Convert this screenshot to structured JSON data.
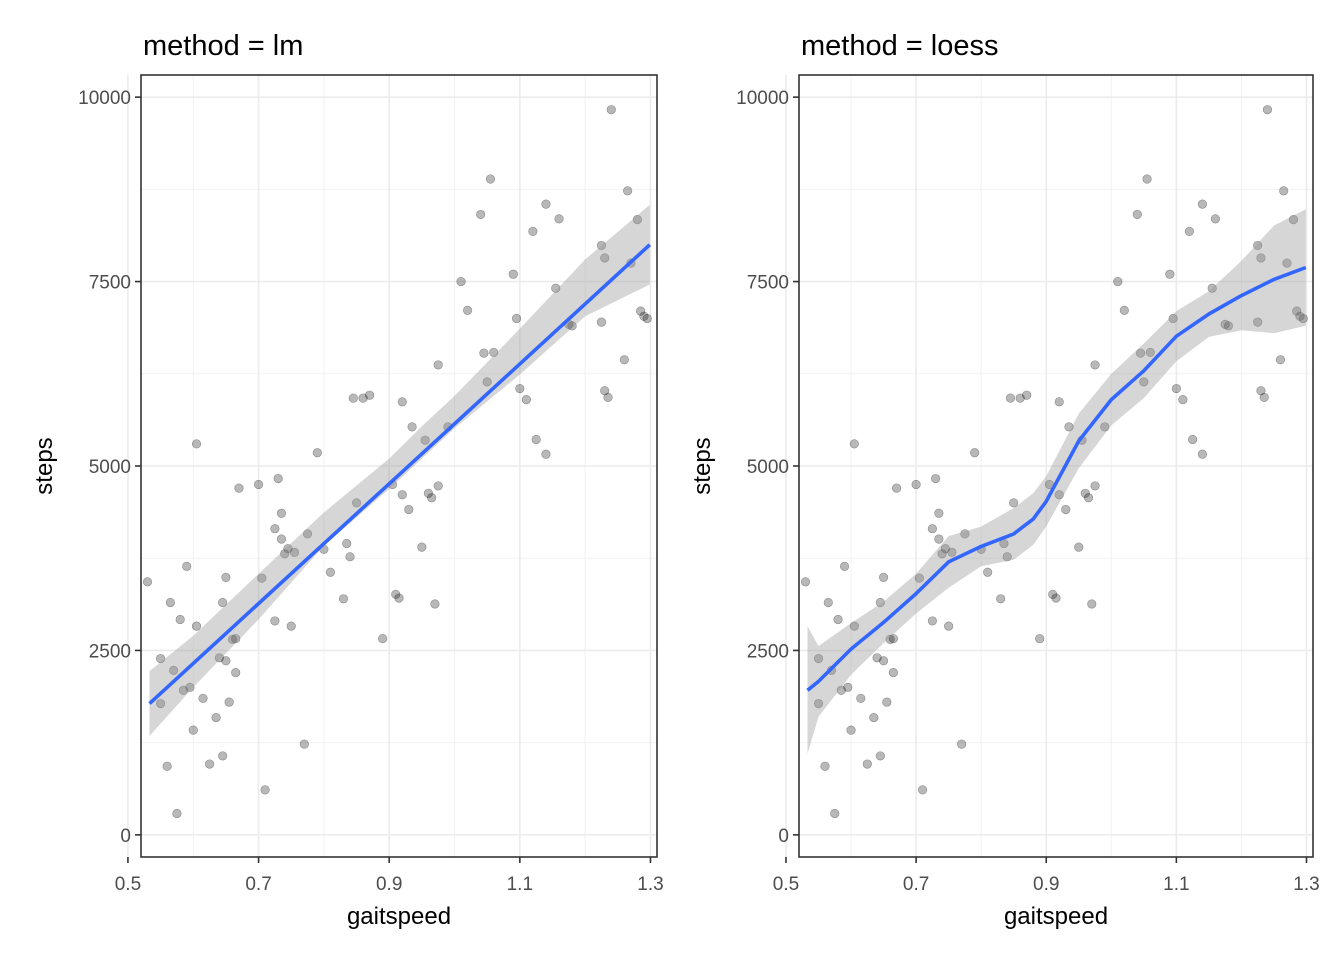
{
  "chart_data": [
    {
      "type": "scatter",
      "title": "method = lm",
      "xlabel": "gaitspeed",
      "ylabel": "steps",
      "xlim": [
        0.52,
        1.31
      ],
      "ylim": [
        -300,
        10300
      ],
      "xticks": [
        0.5,
        0.7,
        0.9,
        1.1,
        1.3
      ],
      "xticklabels": [
        "0.5",
        "0.7",
        "0.9",
        "1.1",
        "1.3"
      ],
      "yticks": [
        0,
        2500,
        5000,
        7500,
        10000
      ],
      "yticklabels": [
        "0",
        "2500",
        "5000",
        "7500",
        "10000"
      ],
      "grid": true,
      "colors": {
        "points": "#000000",
        "line": "#3366ff",
        "band": "#999999"
      },
      "series": [
        {
          "kind": "points",
          "x": [
            0.53,
            0.55,
            0.55,
            0.56,
            0.565,
            0.57,
            0.575,
            0.58,
            0.585,
            0.59,
            0.595,
            0.6,
            0.605,
            0.605,
            0.615,
            0.625,
            0.635,
            0.64,
            0.645,
            0.645,
            0.65,
            0.65,
            0.655,
            0.66,
            0.665,
            0.665,
            0.67,
            0.7,
            0.705,
            0.71,
            0.725,
            0.725,
            0.73,
            0.735,
            0.735,
            0.74,
            0.745,
            0.75,
            0.755,
            0.77,
            0.775,
            0.79,
            0.8,
            0.81,
            0.83,
            0.835,
            0.84,
            0.845,
            0.85,
            0.86,
            0.87,
            0.89,
            0.905,
            0.91,
            0.915,
            0.92,
            0.92,
            0.93,
            0.935,
            0.95,
            0.955,
            0.96,
            0.965,
            0.97,
            0.975,
            0.975,
            0.99,
            1.01,
            1.02,
            1.04,
            1.045,
            1.05,
            1.055,
            1.06,
            1.09,
            1.095,
            1.1,
            1.11,
            1.12,
            1.125,
            1.14,
            1.14,
            1.155,
            1.16,
            1.175,
            1.18,
            1.225,
            1.225,
            1.23,
            1.23,
            1.235,
            1.24,
            1.26,
            1.265,
            1.27,
            1.28,
            1.285,
            1.29,
            1.295
          ],
          "y": [
            3430,
            1780,
            2390,
            930,
            3150,
            2230,
            290,
            2920,
            1960,
            3640,
            2000,
            1420,
            5300,
            2830,
            1850,
            960,
            1590,
            2400,
            1070,
            3150,
            2360,
            3490,
            1800,
            2650,
            2200,
            2660,
            4700,
            4750,
            3480,
            610,
            2900,
            4150,
            4830,
            4010,
            4360,
            3810,
            3880,
            2830,
            3830,
            1230,
            4080,
            5180,
            3870,
            3560,
            3200,
            3950,
            3770,
            5920,
            4500,
            5920,
            5960,
            2660,
            4750,
            3260,
            3210,
            5870,
            4610,
            4410,
            5530,
            3900,
            5350,
            4630,
            4570,
            3130,
            6370,
            4730,
            5530,
            7500,
            7110,
            8410,
            6530,
            6140,
            8890,
            6540,
            7600,
            7000,
            6050,
            5900,
            8180,
            5360,
            5160,
            8550,
            7410,
            8350,
            6920,
            6900,
            6950,
            7990,
            7820,
            6020,
            5930,
            9830,
            6440,
            8730,
            7750,
            8340,
            7100,
            7030,
            7000
          ]
        },
        {
          "kind": "fit",
          "name": "lm",
          "x": [
            0.533,
            1.299
          ],
          "y": [
            1780,
            8000
          ]
        },
        {
          "kind": "ci",
          "x": [
            0.533,
            0.6,
            0.7,
            0.8,
            0.9,
            0.95,
            1.0,
            1.1,
            1.2,
            1.299
          ],
          "lower": [
            1340,
            2000,
            2920,
            3920,
            4690,
            5100,
            5510,
            6240,
            7030,
            7460
          ],
          "upper": [
            2220,
            2700,
            3540,
            4370,
            5100,
            5540,
            5950,
            6860,
            7800,
            8540
          ]
        }
      ]
    },
    {
      "type": "scatter",
      "title": "method = loess",
      "xlabel": "gaitspeed",
      "ylabel": "steps",
      "xlim": [
        0.52,
        1.31
      ],
      "ylim": [
        -300,
        10300
      ],
      "xticks": [
        0.5,
        0.7,
        0.9,
        1.1,
        1.3
      ],
      "xticklabels": [
        "0.5",
        "0.7",
        "0.9",
        "1.1",
        "1.3"
      ],
      "yticks": [
        0,
        2500,
        5000,
        7500,
        10000
      ],
      "yticklabels": [
        "0",
        "2500",
        "5000",
        "7500",
        "10000"
      ],
      "grid": true,
      "colors": {
        "points": "#000000",
        "line": "#3366ff",
        "band": "#999999"
      },
      "series": [
        {
          "kind": "points",
          "x": [
            0.53,
            0.55,
            0.55,
            0.56,
            0.565,
            0.57,
            0.575,
            0.58,
            0.585,
            0.59,
            0.595,
            0.6,
            0.605,
            0.605,
            0.615,
            0.625,
            0.635,
            0.64,
            0.645,
            0.645,
            0.65,
            0.65,
            0.655,
            0.66,
            0.665,
            0.665,
            0.67,
            0.7,
            0.705,
            0.71,
            0.725,
            0.725,
            0.73,
            0.735,
            0.735,
            0.74,
            0.745,
            0.75,
            0.755,
            0.77,
            0.775,
            0.79,
            0.8,
            0.81,
            0.83,
            0.835,
            0.84,
            0.845,
            0.85,
            0.86,
            0.87,
            0.89,
            0.905,
            0.91,
            0.915,
            0.92,
            0.92,
            0.93,
            0.935,
            0.95,
            0.955,
            0.96,
            0.965,
            0.97,
            0.975,
            0.975,
            0.99,
            1.01,
            1.02,
            1.04,
            1.045,
            1.05,
            1.055,
            1.06,
            1.09,
            1.095,
            1.1,
            1.11,
            1.12,
            1.125,
            1.14,
            1.14,
            1.155,
            1.16,
            1.175,
            1.18,
            1.225,
            1.225,
            1.23,
            1.23,
            1.235,
            1.24,
            1.26,
            1.265,
            1.27,
            1.28,
            1.285,
            1.29,
            1.295
          ],
          "y": [
            3430,
            1780,
            2390,
            930,
            3150,
            2230,
            290,
            2920,
            1960,
            3640,
            2000,
            1420,
            5300,
            2830,
            1850,
            960,
            1590,
            2400,
            1070,
            3150,
            2360,
            3490,
            1800,
            2650,
            2200,
            2660,
            4700,
            4750,
            3480,
            610,
            2900,
            4150,
            4830,
            4010,
            4360,
            3810,
            3880,
            2830,
            3830,
            1230,
            4080,
            5180,
            3870,
            3560,
            3200,
            3950,
            3770,
            5920,
            4500,
            5920,
            5960,
            2660,
            4750,
            3260,
            3210,
            5870,
            4610,
            4410,
            5530,
            3900,
            5350,
            4630,
            4570,
            3130,
            6370,
            4730,
            5530,
            7500,
            7110,
            8410,
            6530,
            6140,
            8890,
            6540,
            7600,
            7000,
            6050,
            5900,
            8180,
            5360,
            5160,
            8550,
            7410,
            8350,
            6920,
            6900,
            6950,
            7990,
            7820,
            6020,
            5930,
            9830,
            6440,
            8730,
            7750,
            8340,
            7100,
            7030,
            7000
          ]
        },
        {
          "kind": "fit",
          "name": "loess",
          "x": [
            0.533,
            0.55,
            0.6,
            0.65,
            0.7,
            0.75,
            0.8,
            0.85,
            0.88,
            0.9,
            0.95,
            1.0,
            1.05,
            1.1,
            1.15,
            1.2,
            1.25,
            1.299
          ],
          "y": [
            1960,
            2080,
            2520,
            2880,
            3270,
            3700,
            3910,
            4080,
            4280,
            4520,
            5340,
            5900,
            6290,
            6760,
            7060,
            7310,
            7530,
            7690
          ]
        },
        {
          "kind": "ci",
          "x": [
            0.533,
            0.55,
            0.6,
            0.65,
            0.7,
            0.75,
            0.8,
            0.85,
            0.88,
            0.9,
            0.95,
            1.0,
            1.05,
            1.1,
            1.15,
            1.2,
            1.25,
            1.299
          ],
          "lower": [
            1100,
            1600,
            2170,
            2600,
            3000,
            3350,
            3640,
            3730,
            3930,
            4180,
            4970,
            5550,
            5920,
            6420,
            6750,
            6840,
            6800,
            6900
          ],
          "upper": [
            2830,
            2560,
            2870,
            3160,
            3540,
            4050,
            4180,
            4430,
            4630,
            4860,
            5710,
            6250,
            6660,
            7100,
            7370,
            7780,
            8260,
            8480
          ]
        }
      ]
    }
  ]
}
